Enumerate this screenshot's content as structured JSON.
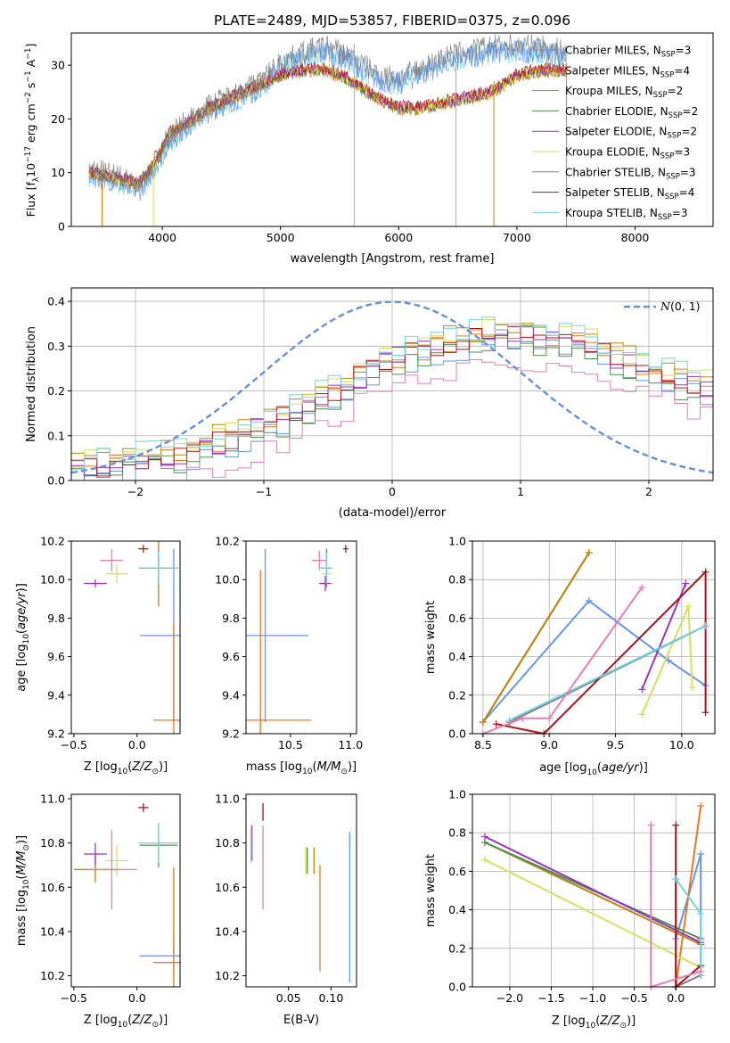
{
  "figure": {
    "title": "PLATE=2489, MJD=53857, FIBERID=0375, z=0.096"
  },
  "colors": {
    "series": [
      "#6495ed",
      "#e6781e",
      "#b8860b",
      "#4f8f4f",
      "#9932cc",
      "#d4e157",
      "#808080",
      "#b0101a",
      "#74d2e0"
    ],
    "pink": "#e87eb0",
    "normal_curve": "#6a8fd8",
    "grid": "#b0b0b0"
  },
  "chart_data": [
    {
      "id": "spectrum",
      "type": "line",
      "xlabel": "wavelength [Angstrom, rest frame]",
      "ylabel": "Flux [f_λ 10^-17 erg cm^-2 s^-1 A^-1]",
      "ylabel_parts": {
        "base": "Flux [f",
        "sub": "λ",
        "mid": "10",
        "sup1": "−17",
        "rest1": " erg cm",
        "sup2": "−2",
        "rest2": " s",
        "sup3": "−1",
        "rest3": " A",
        "sup4": "−1",
        "end": "]"
      },
      "xlim": [
        3230,
        8660
      ],
      "ylim": [
        0,
        36
      ],
      "xticks": [
        "4000",
        "5000",
        "6000",
        "7000",
        "8000"
      ],
      "yticks": [
        "0",
        "10",
        "20",
        "30"
      ],
      "grid": false,
      "legend_position": "right",
      "legend": [
        {
          "label": "Chabrier MILES, N_SSP=3",
          "text": "Chabrier MILES, N",
          "sub": "SSP",
          "tail": "=3"
        },
        {
          "label": "Salpeter MILES, N_SSP=4",
          "text": "Salpeter MILES, N",
          "sub": "SSP",
          "tail": "=4"
        },
        {
          "label": "Kroupa MILES, N_SSP=2",
          "text": "Kroupa MILES, N",
          "sub": "SSP",
          "tail": "=2"
        },
        {
          "label": "Chabrier ELODIE, N_SSP=2",
          "text": "Chabrier ELODIE, N",
          "sub": "SSP",
          "tail": "=2"
        },
        {
          "label": "Salpeter ELODIE, N_SSP=2",
          "text": "Salpeter ELODIE, N",
          "sub": "SSP",
          "tail": "=2"
        },
        {
          "label": "Kroupa ELODIE, N_SSP=3",
          "text": "Kroupa ELODIE, N",
          "sub": "SSP",
          "tail": "=3"
        },
        {
          "label": "Chabrier STELIB, N_SSP=3",
          "text": "Chabrier STELIB, N",
          "sub": "SSP",
          "tail": "=3"
        },
        {
          "label": "Salpeter STELIB, N_SSP=4",
          "text": "Salpeter STELIB, N",
          "sub": "SSP",
          "tail": "=4"
        },
        {
          "label": "Kroupa STELIB, N_SSP=3",
          "text": "Kroupa STELIB, N",
          "sub": "SSP",
          "tail": "=3"
        }
      ],
      "continuum_points": {
        "wavelength": [
          3380,
          3600,
          3800,
          3950,
          4050,
          4200,
          4400,
          4600,
          4800,
          5000,
          5200,
          5400,
          5600,
          5800,
          6000,
          6200,
          6400,
          6600,
          6800,
          7000,
          7200,
          7400
        ],
        "data_flux": [
          10,
          9,
          7,
          12,
          16,
          19,
          22,
          24,
          26,
          30,
          32,
          33,
          31,
          28,
          27,
          29,
          31,
          32,
          33,
          33,
          33,
          32
        ],
        "model_flux": [
          10,
          9,
          8,
          12,
          17,
          19,
          22,
          24,
          26,
          28,
          29,
          29,
          27,
          24,
          22,
          22,
          23,
          24,
          25,
          28,
          29,
          29
        ]
      }
    },
    {
      "id": "residuals",
      "type": "histogram",
      "xlabel": "(data-model)/error",
      "ylabel": "Normed distribution",
      "xlim": [
        -2.5,
        2.5
      ],
      "ylim": [
        0,
        0.43
      ],
      "xticks": [
        "−2",
        "−1",
        "0",
        "1",
        "2"
      ],
      "yticks": [
        "0.0",
        "0.1",
        "0.2",
        "0.3",
        "0.4"
      ],
      "grid": true,
      "legend_position": "upper right",
      "legend": [
        {
          "label": "N(0,1)",
          "text_italic": "N",
          "tail": "(0, 1)"
        }
      ],
      "bin_width": 0.1,
      "profile": {
        "x": [
          -2.5,
          -2.0,
          -1.5,
          -1.0,
          -0.5,
          0.0,
          0.5,
          1.0,
          1.5,
          2.0,
          2.5
        ],
        "density": [
          0.02,
          0.04,
          0.07,
          0.12,
          0.19,
          0.27,
          0.31,
          0.33,
          0.3,
          0.25,
          0.2
        ]
      }
    },
    {
      "id": "age-vs-Z",
      "type": "scatter",
      "xlabel": "Z [log10(Z/Z☉)]",
      "xlabel_parts": {
        "pre": "Z [log",
        "sub": "10",
        "mid": "(",
        "ital": "Z/Z",
        "sub2": "⊙",
        "end": ")]"
      },
      "ylabel": "age [log10(age/yr)]",
      "ylabel_parts": {
        "pre": "age  [log",
        "sub": "10",
        "mid": "(",
        "ital": "age/yr",
        "sub2": "",
        "end": ")]"
      },
      "xlim": [
        -0.52,
        0.34
      ],
      "ylim": [
        9.2,
        10.2
      ],
      "xticks": [
        "−0.5",
        "0.0"
      ],
      "xtick_values": [
        -0.5,
        0.0
      ],
      "yticks": [
        "9.2",
        "9.4",
        "9.6",
        "9.8",
        "10.0",
        "10.2"
      ],
      "ytick_values": [
        9.2,
        9.4,
        9.6,
        9.8,
        10.0,
        10.2
      ],
      "grid": false,
      "points": [
        {
          "x": 0.29,
          "y": 9.71,
          "xerr": 0.27,
          "yerr": 0.45
        },
        {
          "x": 0.29,
          "y": 9.27,
          "xerr": 0.16,
          "yerr": 0.5
        },
        {
          "x": 0.17,
          "y": 10.06,
          "xerr": 0.15,
          "yerr": 0.1
        },
        {
          "x": 0.17,
          "y": 10.06,
          "xerr": 0.15,
          "yerr": 0.2
        },
        {
          "x": -0.33,
          "y": 9.98,
          "xerr": 0.09,
          "yerr": 0.02
        },
        {
          "x": -0.16,
          "y": 10.03,
          "xerr": 0.09,
          "yerr": 0.05
        },
        {
          "x": -0.2,
          "y": 10.1,
          "xerr": 0.09,
          "yerr": 0.06
        },
        {
          "x": 0.05,
          "y": 10.16,
          "xerr": 0.04,
          "yerr": 0.02
        },
        {
          "x": 0.17,
          "y": 10.06,
          "xerr": 0.16,
          "yerr": 0.09
        }
      ]
    },
    {
      "id": "age-vs-mass",
      "type": "scatter",
      "xlabel": "mass [log10(M/M☉)]",
      "xlabel_parts": {
        "pre": "mass [log",
        "sub": "10",
        "mid": "(",
        "ital": "M/M",
        "sub2": "⊙",
        "end": ")]"
      },
      "xlim": [
        10.13,
        11.05
      ],
      "ylim": [
        9.2,
        10.2
      ],
      "xticks": [
        "10.5",
        "11.0"
      ],
      "xtick_values": [
        10.5,
        11.0
      ],
      "yticks": [
        "9.2",
        "9.4",
        "9.6",
        "9.8",
        "10.0",
        "10.2"
      ],
      "ytick_values": [
        9.2,
        9.4,
        9.6,
        9.8,
        10.0,
        10.2
      ],
      "grid": false,
      "points": [
        {
          "x": 10.29,
          "y": 9.71,
          "xerr": 0.36,
          "yerr": 0.45
        },
        {
          "x": 10.25,
          "y": 9.27,
          "xerr": 0.42,
          "yerr": 0.78
        },
        {
          "x": 10.8,
          "y": 10.06,
          "xerr": 0.05,
          "yerr": 0.1
        },
        {
          "x": 10.8,
          "y": 10.06,
          "xerr": 0.05,
          "yerr": 0.08
        },
        {
          "x": 10.79,
          "y": 9.98,
          "xerr": 0.05,
          "yerr": 0.04
        },
        {
          "x": 10.8,
          "y": 10.03,
          "xerr": 0.04,
          "yerr": 0.04
        },
        {
          "x": 10.74,
          "y": 10.1,
          "xerr": 0.06,
          "yerr": 0.05
        },
        {
          "x": 10.96,
          "y": 10.16,
          "xerr": 0.02,
          "yerr": 0.02
        },
        {
          "x": 10.8,
          "y": 10.06,
          "xerr": 0.05,
          "yerr": 0.08
        }
      ]
    },
    {
      "id": "weight-vs-age",
      "type": "line",
      "xlabel": "age [log10(age/yr)]",
      "xlabel_parts": {
        "pre": "age  [log",
        "sub": "10",
        "mid": "(",
        "ital": "age/yr",
        "sub2": "",
        "end": ")]"
      },
      "ylabel": "mass weight",
      "xlim": [
        8.42,
        10.25
      ],
      "ylim": [
        0,
        1
      ],
      "xticks": [
        "8.5",
        "9.0",
        "9.5",
        "10.0"
      ],
      "xtick_values": [
        8.5,
        9.0,
        9.5,
        10.0
      ],
      "yticks": [
        "0.0",
        "0.2",
        "0.4",
        "0.6",
        "0.8",
        "1.0"
      ],
      "ytick_values": [
        0,
        0.2,
        0.4,
        0.6,
        0.8,
        1.0
      ],
      "grid": true,
      "series": [
        {
          "x": [
            8.5,
            9.3,
            9.9,
            10.18
          ],
          "y": [
            0.06,
            0.69,
            0.38,
            0.25
          ]
        },
        {
          "x": [
            8.5,
            9.3
          ],
          "y": [
            0.06,
            0.94
          ]
        },
        {
          "x": [
            8.5,
            9.3
          ],
          "y": [
            0.06,
            0.94
          ]
        },
        {
          "x": [
            8.7,
            10.18
          ],
          "y": [
            0.06,
            0.56
          ]
        },
        {
          "x": [
            9.7,
            10.03
          ],
          "y": [
            0.23,
            0.78
          ]
        },
        {
          "x": [
            9.7,
            10.05,
            10.08
          ],
          "y": [
            0.1,
            0.66,
            0.24
          ]
        },
        {
          "x": [
            8.7,
            10.18
          ],
          "y": [
            0.06,
            0.56
          ]
        },
        {
          "x": [
            8.6,
            8.96,
            10.18,
            10.18
          ],
          "y": [
            0.05,
            0.0,
            0.84,
            0.11
          ]
        },
        {
          "x": [
            8.7,
            10.18
          ],
          "y": [
            0.07,
            0.56
          ]
        },
        {
          "x": [
            8.5,
            8.8,
            9.0,
            9.7
          ],
          "y": [
            0.0,
            0.08,
            0.08,
            0.76
          ]
        }
      ]
    },
    {
      "id": "mass-vs-Z",
      "type": "scatter",
      "xlabel": "Z [log10(Z/Z☉)]",
      "xlabel_parts": {
        "pre": "Z [log",
        "sub": "10",
        "mid": "(",
        "ital": "Z/Z",
        "sub2": "⊙",
        "end": ")]"
      },
      "ylabel": "mass [log10(M/M☉)]",
      "ylabel_parts": {
        "pre": "mass [log",
        "sub": "10",
        "mid": "(",
        "ital": "M/M",
        "sub2": "⊙",
        "end": ")]"
      },
      "xlim": [
        -0.52,
        0.34
      ],
      "ylim": [
        10.15,
        11.02
      ],
      "xticks": [
        "−0.5",
        "0.0"
      ],
      "xtick_values": [
        -0.5,
        0.0
      ],
      "yticks": [
        "10.2",
        "10.4",
        "10.6",
        "10.8",
        "11.0"
      ],
      "ytick_values": [
        10.2,
        10.4,
        10.6,
        10.8,
        11.0
      ],
      "grid": false,
      "points": [
        {
          "x": 0.29,
          "y": 10.29,
          "xerr": 0.27,
          "yerr": 0.09
        },
        {
          "x": 0.29,
          "y": 10.26,
          "xerr": 0.16,
          "yerr": 0.43
        },
        {
          "x": 0.17,
          "y": 10.79,
          "xerr": 0.15,
          "yerr": 0.1
        },
        {
          "x": -0.33,
          "y": 10.68,
          "xerr": 0.17,
          "yerr": 0.06
        },
        {
          "x": -0.33,
          "y": 10.75,
          "xerr": 0.09,
          "yerr": 0.05
        },
        {
          "x": -0.16,
          "y": 10.72,
          "xerr": 0.09,
          "yerr": 0.07
        },
        {
          "x": -0.2,
          "y": 10.68,
          "xerr": 0.2,
          "yerr": 0.18
        },
        {
          "x": 0.05,
          "y": 10.96,
          "xerr": 0.04,
          "yerr": 0.02
        },
        {
          "x": 0.17,
          "y": 10.8,
          "xerr": 0.16,
          "yerr": 0.09
        }
      ]
    },
    {
      "id": "mass-vs-ebv",
      "type": "scatter",
      "xlabel": "E(B-V)",
      "xlim": [
        0.0,
        0.13
      ],
      "ylim": [
        10.15,
        11.02
      ],
      "xticks": [
        "0.05",
        "0.10"
      ],
      "xtick_values": [
        0.05,
        0.1
      ],
      "yticks": [
        "10.2",
        "10.4",
        "10.6",
        "10.8",
        "11.0"
      ],
      "ytick_values": [
        10.2,
        10.4,
        10.6,
        10.8,
        11.0
      ],
      "grid": false,
      "points": [
        {
          "x": 0.122,
          "y": 10.51,
          "xerr": 0,
          "yerr": 0.34
        },
        {
          "x": 0.087,
          "y": 10.46,
          "xerr": 0,
          "yerr": 0.24
        },
        {
          "x": 0.072,
          "y": 10.72,
          "xerr": 0,
          "yerr": 0.06
        },
        {
          "x": 0.08,
          "y": 10.72,
          "xerr": 0,
          "yerr": 0.06
        },
        {
          "x": 0.007,
          "y": 10.8,
          "xerr": 0,
          "yerr": 0.08
        },
        {
          "x": 0.07,
          "y": 10.72,
          "xerr": 0,
          "yerr": 0.06
        },
        {
          "x": 0.02,
          "y": 10.69,
          "xerr": 0,
          "yerr": 0.19
        },
        {
          "x": 0.02,
          "y": 10.94,
          "xerr": 0,
          "yerr": 0.04
        },
        {
          "x": 0.006,
          "y": 10.79,
          "xerr": 0,
          "yerr": 0.08
        }
      ]
    },
    {
      "id": "weight-vs-Z",
      "type": "line",
      "xlabel": "Z [log10(Z/Z☉)]",
      "xlabel_parts": {
        "pre": "Z [log",
        "sub": "10",
        "mid": "(",
        "ital": "Z/Z",
        "sub2": "⊙",
        "end": ")]"
      },
      "ylabel": "mass weight",
      "xlim": [
        -2.45,
        0.47
      ],
      "ylim": [
        0,
        1
      ],
      "xticks": [
        "−2.0",
        "−1.5",
        "−1.0",
        "−0.5",
        "0.0"
      ],
      "xtick_values": [
        -2.0,
        -1.5,
        -1.0,
        -0.5,
        0.0
      ],
      "yticks": [
        "0.0",
        "0.2",
        "0.4",
        "0.6",
        "0.8",
        "1.0"
      ],
      "ytick_values": [
        0,
        0.2,
        0.4,
        0.6,
        0.8,
        1.0
      ],
      "grid": true,
      "series": [
        {
          "x": [
            0.0,
            0.3,
            0.3
          ],
          "y": [
            0.25,
            0.69,
            0.06
          ]
        },
        {
          "x": [
            0.0,
            0.3
          ],
          "y": [
            0.0,
            0.94
          ]
        },
        {
          "x": [
            -2.3,
            0.3
          ],
          "y": [
            0.75,
            0.22
          ]
        },
        {
          "x": [
            -2.3,
            0.3
          ],
          "y": [
            0.75,
            0.25
          ]
        },
        {
          "x": [
            -2.3,
            0.3
          ],
          "y": [
            0.78,
            0.23
          ]
        },
        {
          "x": [
            -2.3,
            0.3
          ],
          "y": [
            0.66,
            0.1
          ]
        },
        {
          "x": [
            0.0,
            0.0,
            0.3
          ],
          "y": [
            0.56,
            0.0,
            0.06
          ]
        },
        {
          "x": [
            0.0,
            0.0,
            0.3
          ],
          "y": [
            0.84,
            0.0,
            0.11
          ]
        },
        {
          "x": [
            0.0,
            0.3,
            0.3
          ],
          "y": [
            0.56,
            0.38,
            0.06
          ]
        },
        {
          "x": [
            -0.3,
            -0.3,
            0.3
          ],
          "y": [
            0.84,
            0.0,
            0.08
          ]
        }
      ]
    }
  ]
}
